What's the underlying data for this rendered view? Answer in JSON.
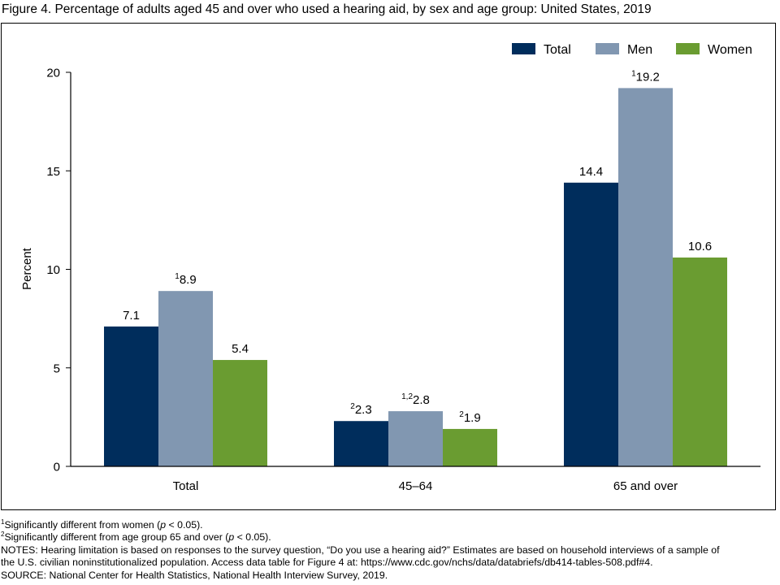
{
  "title": "Figure 4. Percentage of adults aged 45 and over who used a hearing aid, by sex and age group: United States, 2019",
  "colors": {
    "Total": "#002D5C",
    "Men": "#8197B1",
    "Women": "#6A9C31"
  },
  "chart_data": {
    "type": "bar",
    "categories": [
      "Total",
      "45–64",
      "65 and over"
    ],
    "series": [
      {
        "name": "Total",
        "values": [
          7.1,
          2.3,
          14.4
        ],
        "labels": [
          "7.1",
          "2.3",
          "14.4"
        ],
        "sup": [
          "",
          "2",
          ""
        ]
      },
      {
        "name": "Men",
        "values": [
          8.9,
          2.8,
          19.2
        ],
        "labels": [
          "8.9",
          "2.8",
          "19.2"
        ],
        "sup": [
          "1",
          "1,2",
          "1"
        ]
      },
      {
        "name": "Women",
        "values": [
          5.4,
          1.9,
          10.6
        ],
        "labels": [
          "5.4",
          "1.9",
          "10.6"
        ],
        "sup": [
          "",
          "2",
          ""
        ]
      }
    ],
    "ylabel": "Percent",
    "ylim": [
      0,
      20
    ],
    "yticks": [
      "0",
      "5",
      "10",
      "15",
      "20"
    ],
    "grid": false,
    "legend": "top-right"
  },
  "notes": {
    "fn1_sup": "1",
    "fn1_text": "Significantly different from women (",
    "fn1_p": "p",
    "fn1_tail": " < 0.05).",
    "fn2_sup": "2",
    "fn2_text": "Significantly different from age group 65 and over (",
    "fn2_p": "p",
    "fn2_tail": " < 0.05).",
    "notes_line1": "NOTES: Hearing limitation is based on responses to the survey question, “Do you use a hearing aid?” Estimates are based on household interviews of a sample of",
    "notes_line2": "the U.S. civilian noninstitutionalized population. Access data table for Figure 4 at: https://www.cdc.gov/nchs/data/databriefs/db414-tables-508.pdf#4.",
    "source": "SOURCE: National Center for Health Statistics, National Health Interview Survey, 2019."
  }
}
